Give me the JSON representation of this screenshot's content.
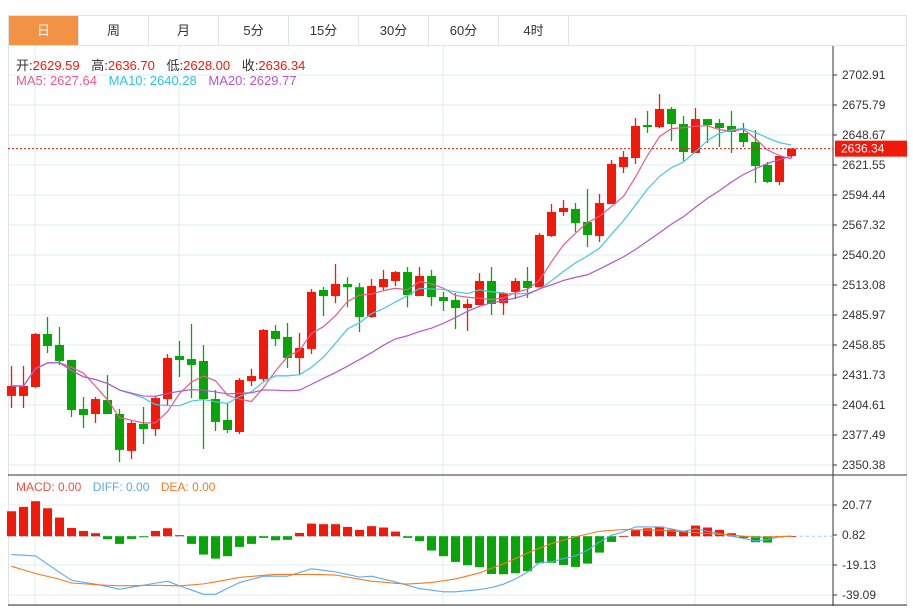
{
  "tabs": [
    "日",
    "周",
    "月",
    "5分",
    "15分",
    "30分",
    "60分",
    "4时"
  ],
  "active_tab": 0,
  "ohlc_info": {
    "open_label": "开:",
    "open": "2629.59",
    "high_label": "高:",
    "high": "2636.70",
    "low_label": "低:",
    "low": "2628.00",
    "close_label": "收:",
    "close": "2636.34"
  },
  "ma_info": {
    "ma5": "MA5: 2627.64",
    "ma10": "MA10: 2640.28",
    "ma20": "MA20: 2629.77"
  },
  "macd_info": {
    "macd": "MACD: 0.00",
    "diff": "DIFF: 0.00",
    "dea": "DEA: 0.00"
  },
  "current_price_label": "2636.34",
  "colors": {
    "up": "#f0190a",
    "down": "#08a508",
    "ma5": "#ec5a88",
    "ma10": "#44c8e0",
    "ma20": "#b258cc",
    "diff": "#5aaaf0",
    "dea": "#f47b22",
    "tab_active": "#f29245"
  },
  "chart_data": [
    {
      "type": "candlestick",
      "title": "",
      "ylim": [
        2350.38,
        2702.91
      ],
      "y_ticks": [
        "2702.91",
        "2675.79",
        "2648.67",
        "2621.55",
        "2594.44",
        "2567.32",
        "2540.20",
        "2513.08",
        "2485.97",
        "2458.85",
        "2431.73",
        "2404.61",
        "2377.49",
        "2350.38"
      ],
      "current_price": 2636.34,
      "ohlc_fields": [
        "open",
        "high",
        "low",
        "close"
      ],
      "candles": [
        [
          2412.8,
          2439.9,
          2401.9,
          2421.8
        ],
        [
          2412.8,
          2439.9,
          2401.9,
          2421.8
        ],
        [
          2420.9,
          2469.7,
          2420.0,
          2468.8
        ],
        [
          2468.8,
          2484.2,
          2451.6,
          2458.0
        ],
        [
          2458.9,
          2475.1,
          2440.8,
          2444.4
        ],
        [
          2445.3,
          2445.3,
          2393.8,
          2400.1
        ],
        [
          2401.0,
          2411.9,
          2383.8,
          2395.6
        ],
        [
          2396.5,
          2411.9,
          2388.4,
          2410.0
        ],
        [
          2409.1,
          2431.7,
          2396.5,
          2396.5
        ],
        [
          2396.5,
          2401.0,
          2353.1,
          2364.0
        ],
        [
          2363.1,
          2390.2,
          2355.8,
          2388.4
        ],
        [
          2387.5,
          2402.8,
          2369.4,
          2382.9
        ],
        [
          2382.9,
          2412.8,
          2376.6,
          2410.9
        ],
        [
          2410.0,
          2450.7,
          2404.6,
          2447.1
        ],
        [
          2448.9,
          2462.5,
          2429.9,
          2445.3
        ],
        [
          2446.2,
          2477.8,
          2410.9,
          2440.8
        ],
        [
          2444.4,
          2458.9,
          2364.9,
          2410.0
        ],
        [
          2410.0,
          2418.2,
          2381.1,
          2389.3
        ],
        [
          2391.1,
          2406.4,
          2379.3,
          2382.0
        ],
        [
          2380.2,
          2429.0,
          2378.4,
          2427.2
        ],
        [
          2426.3,
          2437.2,
          2421.8,
          2430.8
        ],
        [
          2428.1,
          2473.3,
          2425.4,
          2472.4
        ],
        [
          2471.5,
          2476.9,
          2458.0,
          2464.3
        ],
        [
          2466.1,
          2478.7,
          2438.1,
          2447.1
        ],
        [
          2447.1,
          2469.7,
          2432.6,
          2456.2
        ],
        [
          2455.3,
          2509.5,
          2450.7,
          2506.8
        ],
        [
          2508.6,
          2511.3,
          2485.1,
          2503.1
        ],
        [
          2503.1,
          2532.1,
          2496.6,
          2514.0
        ],
        [
          2514.0,
          2520.2,
          2493.0,
          2511.1
        ],
        [
          2511.1,
          2514.9,
          2470.6,
          2484.2
        ],
        [
          2484.2,
          2518.5,
          2483.3,
          2512.2
        ],
        [
          2511.1,
          2526.7,
          2508.6,
          2518.5
        ],
        [
          2516.7,
          2525.7,
          2512.2,
          2524.8
        ],
        [
          2524.8,
          2529.3,
          2493.0,
          2504.0
        ],
        [
          2503.1,
          2529.3,
          2503.1,
          2521.2
        ],
        [
          2521.2,
          2526.7,
          2494.1,
          2502.2
        ],
        [
          2502.2,
          2506.8,
          2489.6,
          2498.6
        ],
        [
          2499.5,
          2505.9,
          2473.3,
          2492.3
        ],
        [
          2492.3,
          2500.4,
          2471.5,
          2495.9
        ],
        [
          2495.0,
          2523.9,
          2495.0,
          2516.7
        ],
        [
          2516.7,
          2529.3,
          2486.0,
          2495.9
        ],
        [
          2496.8,
          2506.8,
          2486.0,
          2505.9
        ],
        [
          2506.8,
          2519.4,
          2500.4,
          2516.7
        ],
        [
          2516.7,
          2529.3,
          2501.3,
          2510.4
        ],
        [
          2511.1,
          2560.1,
          2511.1,
          2558.3
        ],
        [
          2557.4,
          2586.3,
          2556.5,
          2579.1
        ],
        [
          2579.1,
          2589.9,
          2575.5,
          2582.7
        ],
        [
          2581.8,
          2587.2,
          2561.0,
          2569.1
        ],
        [
          2570.0,
          2599.9,
          2547.4,
          2558.3
        ],
        [
          2557.4,
          2595.3,
          2552.0,
          2587.2
        ],
        [
          2586.3,
          2626.1,
          2586.3,
          2622.5
        ],
        [
          2619.7,
          2634.2,
          2614.3,
          2628.8
        ],
        [
          2627.9,
          2664.0,
          2622.5,
          2656.8
        ],
        [
          2657.7,
          2670.4,
          2650.5,
          2655.9
        ],
        [
          2655.9,
          2685.7,
          2655.0,
          2672.2
        ],
        [
          2672.2,
          2674.0,
          2643.2,
          2658.6
        ],
        [
          2658.6,
          2665.8,
          2625.2,
          2633.3
        ],
        [
          2632.4,
          2673.1,
          2632.4,
          2663.1
        ],
        [
          2663.1,
          2663.1,
          2641.4,
          2657.7
        ],
        [
          2659.5,
          2663.1,
          2637.8,
          2655.0
        ],
        [
          2656.8,
          2670.4,
          2632.4,
          2651.4
        ],
        [
          2650.5,
          2659.5,
          2637.8,
          2642.3
        ],
        [
          2642.3,
          2653.2,
          2605.3,
          2620.6
        ],
        [
          2621.6,
          2624.3,
          2605.3,
          2606.2
        ],
        [
          2606.2,
          2629.7,
          2603.4,
          2629.7
        ],
        [
          2629.59,
          2636.7,
          2628.0,
          2636.34
        ]
      ],
      "moving_averages": [
        {
          "name": "MA5",
          "period": 5
        },
        {
          "name": "MA10",
          "period": 10
        },
        {
          "name": "MA20",
          "period": 20
        }
      ]
    },
    {
      "type": "bar+line",
      "title": "MACD",
      "ylim": [
        -39.09,
        20.77
      ],
      "y_ticks": [
        "20.77",
        "0.82",
        "-19.13",
        "-39.09"
      ],
      "macd_hist": [
        16.6,
        19.5,
        23.3,
        18.6,
        12.4,
        5.5,
        3.5,
        2.0,
        -2.0,
        -5.1,
        -1.8,
        -0.7,
        3.5,
        5.3,
        0.7,
        -5.1,
        -12.2,
        -14.9,
        -13.3,
        -7.1,
        -5.1,
        -1.1,
        -2.7,
        -2.4,
        2.2,
        8.4,
        8.0,
        8.0,
        6.2,
        4.2,
        6.7,
        5.8,
        3.1,
        -1.1,
        -3.3,
        -9.5,
        -13.3,
        -17.1,
        -19.3,
        -20.6,
        -25.1,
        -25.3,
        -24.6,
        -23.3,
        -18.0,
        -17.7,
        -19.1,
        -20.4,
        -18.2,
        -10.9,
        -3.8,
        0,
        4.0,
        5.3,
        6.4,
        4.4,
        3.5,
        7.1,
        5.8,
        4.2,
        2.0,
        -1.3,
        -4.0,
        -4.2,
        -0.7,
        0
      ],
      "diff": [
        -12.2,
        -12.6,
        -13.1,
        -18.5,
        -24,
        -29.3,
        -30.6,
        -31.9,
        -33.5,
        -35.2,
        -33.9,
        -32.6,
        -31.2,
        -29.9,
        -33.0,
        -35.8,
        -38.6,
        -38.6,
        -34.7,
        -30.8,
        -28.7,
        -26.6,
        -26.6,
        -26.6,
        -24.1,
        -21.7,
        -22.7,
        -23.7,
        -25.4,
        -27.2,
        -26.6,
        -28.5,
        -30.4,
        -32.7,
        -34.8,
        -35.9,
        -37.0,
        -37.0,
        -36.2,
        -35.5,
        -34.1,
        -31.9,
        -28.4,
        -23.9,
        -17.5,
        -17.0,
        -14.9,
        -13.1,
        -9.3,
        -3.8,
        0.7,
        2.9,
        6.2,
        6.2,
        6.2,
        4.9,
        3.3,
        4.9,
        3.3,
        1.8,
        0,
        -1.5,
        -3.1,
        -2.2,
        -0.4,
        0
      ],
      "dea": [
        -20,
        -22.4,
        -24.8,
        -26.7,
        -28.6,
        -31.1,
        -31.6,
        -32.2,
        -32.6,
        -33.0,
        -32.9,
        -32.7,
        -32.6,
        -32.8,
        -33.0,
        -32.4,
        -31.7,
        -30.3,
        -28.9,
        -27.4,
        -26.7,
        -26.0,
        -25.4,
        -25.4,
        -25.4,
        -25.4,
        -25.6,
        -25.8,
        -27.2,
        -28.6,
        -29.9,
        -30.6,
        -31.3,
        -31.8,
        -31.3,
        -30.8,
        -29.6,
        -28.4,
        -26.4,
        -24.4,
        -21.4,
        -18.4,
        -14.8,
        -11.1,
        -8.0,
        -4.9,
        -2.6,
        -0.4,
        1.5,
        3.3,
        3.9,
        4.4,
        4.3,
        4.1,
        4.0,
        3.5,
        2.9,
        2.4,
        1.8,
        1.2,
        0.7,
        0.0,
        -0.7,
        -0.5,
        -0.2,
        0
      ]
    }
  ]
}
